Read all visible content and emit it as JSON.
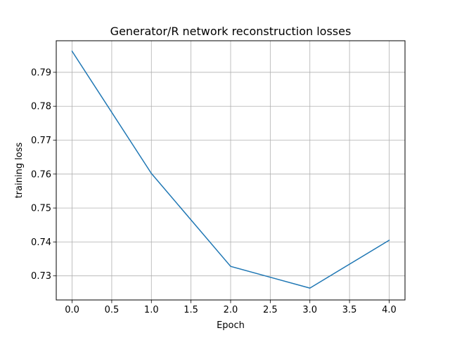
{
  "chart_data": {
    "type": "line",
    "title": "Generator/R network reconstruction losses",
    "xlabel": "Epoch",
    "ylabel": "training loss",
    "x": [
      0,
      1,
      2,
      3,
      4
    ],
    "series": [
      {
        "values": [
          0.7962,
          0.7602,
          0.7328,
          0.7264,
          0.7405
        ],
        "color": "#1f77b4"
      }
    ],
    "xlim": [
      -0.2,
      4.2
    ],
    "ylim": [
      0.7229,
      0.7993
    ],
    "xticks": [
      0.0,
      0.5,
      1.0,
      1.5,
      2.0,
      2.5,
      3.0,
      3.5,
      4.0
    ],
    "xtick_labels": [
      "0.0",
      "0.5",
      "1.0",
      "1.5",
      "2.0",
      "2.5",
      "3.0",
      "3.5",
      "4.0"
    ],
    "yticks": [
      0.73,
      0.74,
      0.75,
      0.76,
      0.77,
      0.78,
      0.79
    ],
    "ytick_labels": [
      "0.73",
      "0.74",
      "0.75",
      "0.76",
      "0.77",
      "0.78",
      "0.79"
    ],
    "grid": true,
    "legend": "none",
    "colors": {
      "grid": "#b0b0b0",
      "axes": "#000000",
      "background": "#ffffff"
    }
  }
}
